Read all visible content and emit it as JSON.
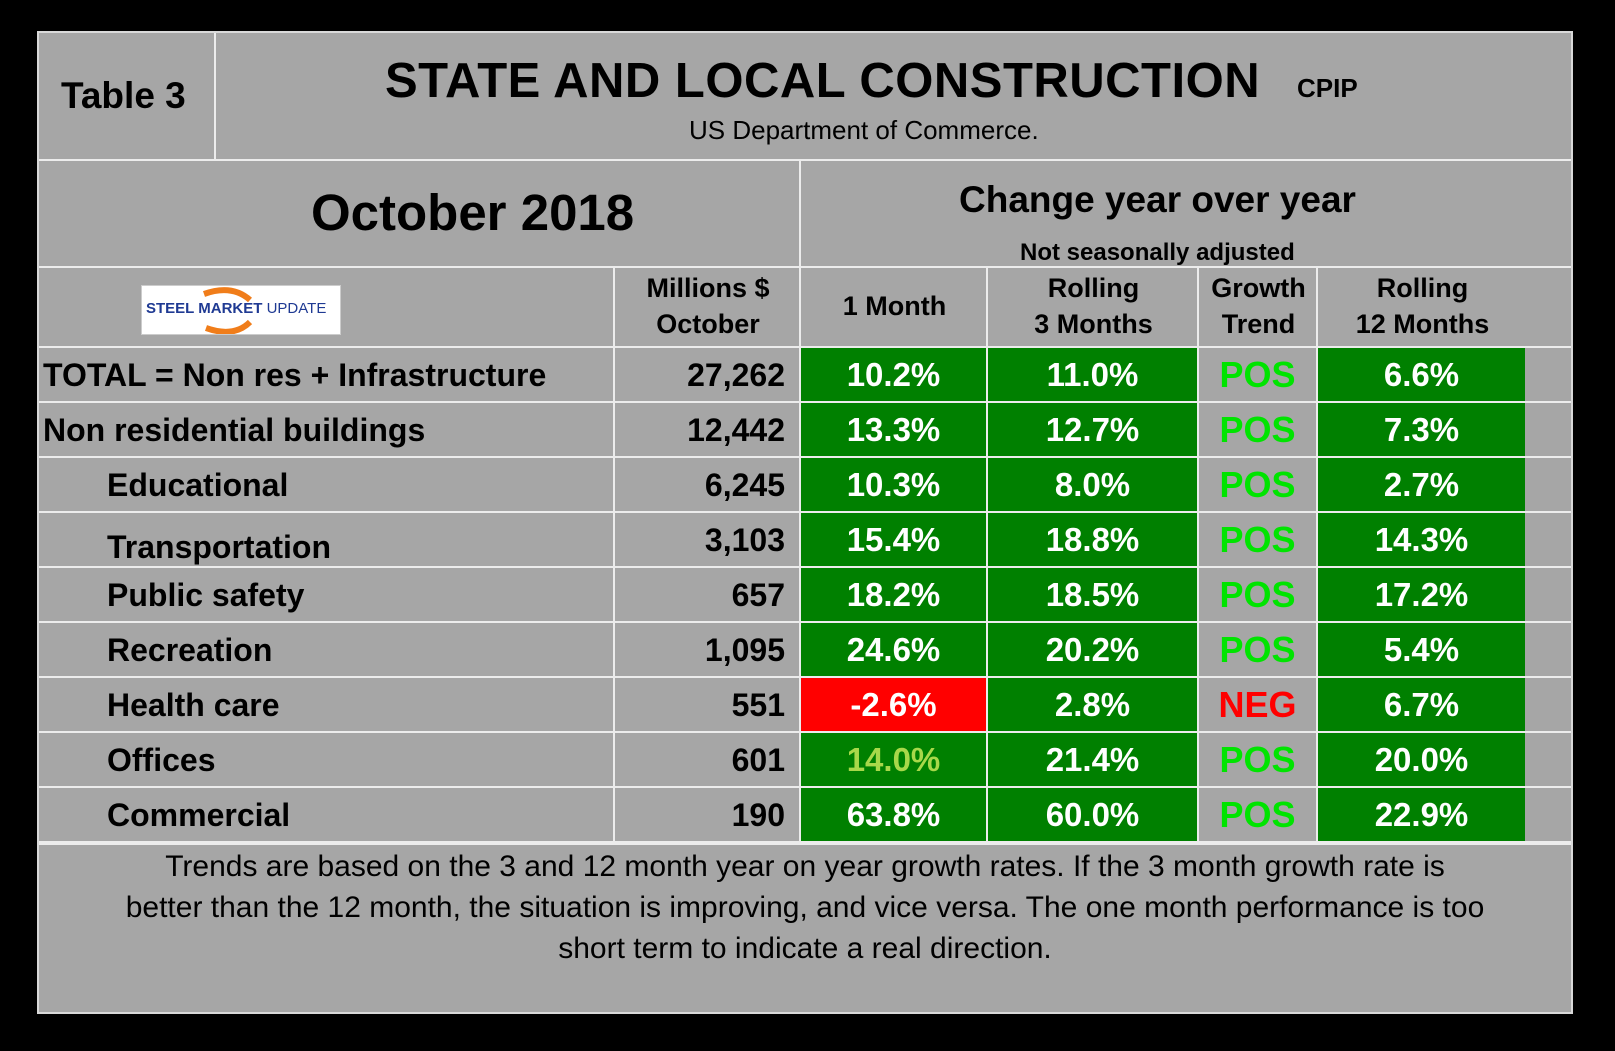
{
  "header": {
    "table_label": "Table 3",
    "title": "STATE AND LOCAL CONSTRUCTION",
    "title_tag": "CPIP",
    "source": "US Department of Commerce.",
    "period": "October 2018",
    "change_title": "Change year over year",
    "change_subtitle": "Not seasonally adjusted"
  },
  "logo": {
    "word1": "STEEL",
    "word2": "MARKET",
    "word3": "UPDATE"
  },
  "columns": {
    "millions_line1": "Millions $",
    "millions_line2": "October",
    "one_month": "1 Month",
    "rolling3_line1": "Rolling",
    "rolling3_line2": "3 Months",
    "trend_line1": "Growth",
    "trend_line2": "Trend",
    "rolling12_line1": "Rolling",
    "rolling12_line2": "12 Months"
  },
  "rows": [
    {
      "label": "TOTAL = Non res + Infrastructure",
      "millions": "27,262",
      "m1": "10.2%",
      "m3": "11.0%",
      "trend": "POS",
      "m12": "6.6%"
    },
    {
      "label": "Non residential buildings",
      "millions": "12,442",
      "m1": "13.3%",
      "m3": "12.7%",
      "trend": "POS",
      "m12": "7.3%"
    },
    {
      "label": "Educational",
      "millions": "6,245",
      "m1": "10.3%",
      "m3": "8.0%",
      "trend": "POS",
      "m12": "2.7%"
    },
    {
      "label": "Transportation",
      "millions": "3,103",
      "m1": "15.4%",
      "m3": "18.8%",
      "trend": "POS",
      "m12": "14.3%"
    },
    {
      "label": "Public safety",
      "millions": "657",
      "m1": "18.2%",
      "m3": "18.5%",
      "trend": "POS",
      "m12": "17.2%"
    },
    {
      "label": "Recreation",
      "millions": "1,095",
      "m1": "24.6%",
      "m3": "20.2%",
      "trend": "POS",
      "m12": "5.4%"
    },
    {
      "label": "Health care",
      "millions": "551",
      "m1": "-2.6%",
      "m3": "2.8%",
      "trend": "NEG",
      "m12": "6.7%"
    },
    {
      "label": "Offices",
      "millions": "601",
      "m1": "14.0%",
      "m3": "21.4%",
      "trend": "POS",
      "m12": "20.0%"
    },
    {
      "label": "Commercial",
      "millions": "190",
      "m1": "63.8%",
      "m3": "60.0%",
      "trend": "POS",
      "m12": "22.9%"
    }
  ],
  "footnote": {
    "line1": "Trends are based on the 3 and 12 month year on year growth rates. If the 3 month growth rate is",
    "line2": "better than the 12 month, the situation is improving, and vice versa. The one month performance is too",
    "line3": "short term to indicate a real direction."
  },
  "colors": {
    "panel_bg": "#a6a6a6",
    "cell_green": "#008000",
    "cell_red": "#ff0000",
    "trend_pos": "#00e400",
    "trend_neg": "#ff0000",
    "offices_1m_text": "#a8d84a",
    "logo_orange": "#f07d1a",
    "logo_blue": "#1f3a93"
  }
}
